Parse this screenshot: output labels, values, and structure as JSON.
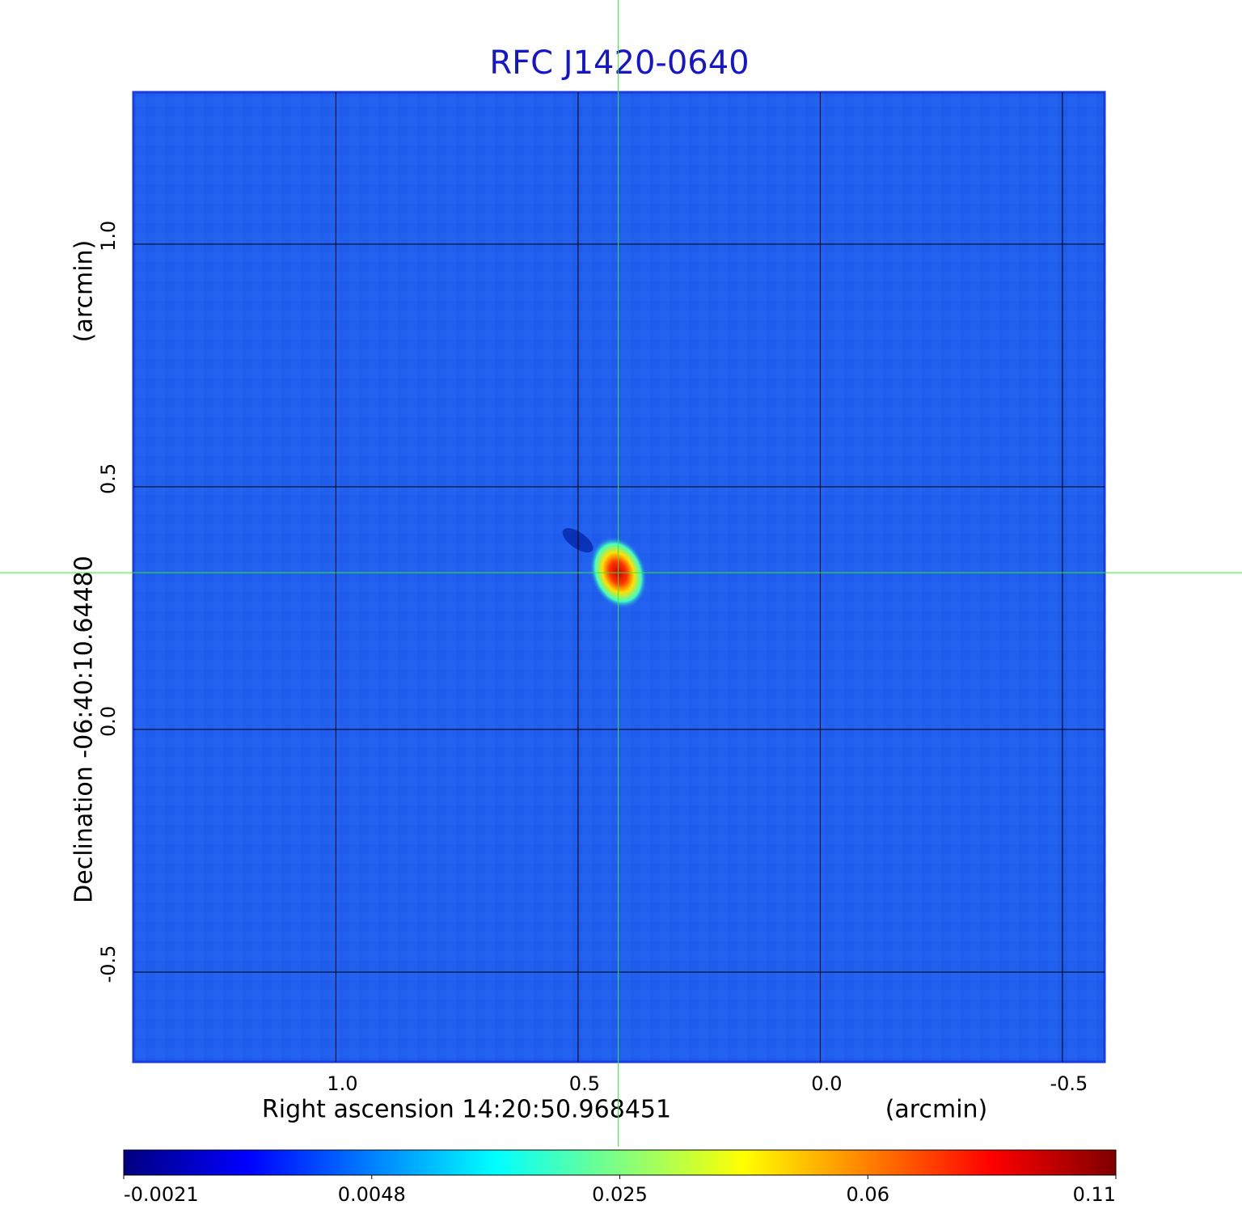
{
  "chart_data": {
    "type": "image",
    "title": "RFC J1420-0640",
    "xlabel": "Right ascension  14:20:50.968451",
    "xlabel_unit": "(arcmin)",
    "ylabel": "Declination  -06:40:10.64480",
    "ylabel_unit": "(arcmin)",
    "xlim": [
      1.418,
      -0.587
    ],
    "ylim": [
      -0.685,
      1.313
    ],
    "xticks": [
      {
        "value": 1,
        "label": "1.0"
      },
      0.5,
      {
        "value": 0,
        "label": "0.0"
      },
      -0.5
    ],
    "yticks": [
      -0.5,
      {
        "value": 0,
        "label": "0.0"
      },
      0.5,
      {
        "value": 1,
        "label": "1.0"
      }
    ],
    "grid": true,
    "background": "#2160ee",
    "crosshair": {
      "x": 0.417,
      "y": 0.323,
      "color": "#33ee33"
    },
    "colorbar": {
      "ticks": [
        -0.0021,
        0.0048,
        0.025,
        0.06,
        0.11
      ],
      "colormap": [
        "#00007f",
        "#0000ff",
        "#0080ff",
        "#00ffff",
        "#80ff80",
        "#ffff00",
        "#ff8000",
        "#ff0000",
        "#7f0000"
      ]
    }
  }
}
